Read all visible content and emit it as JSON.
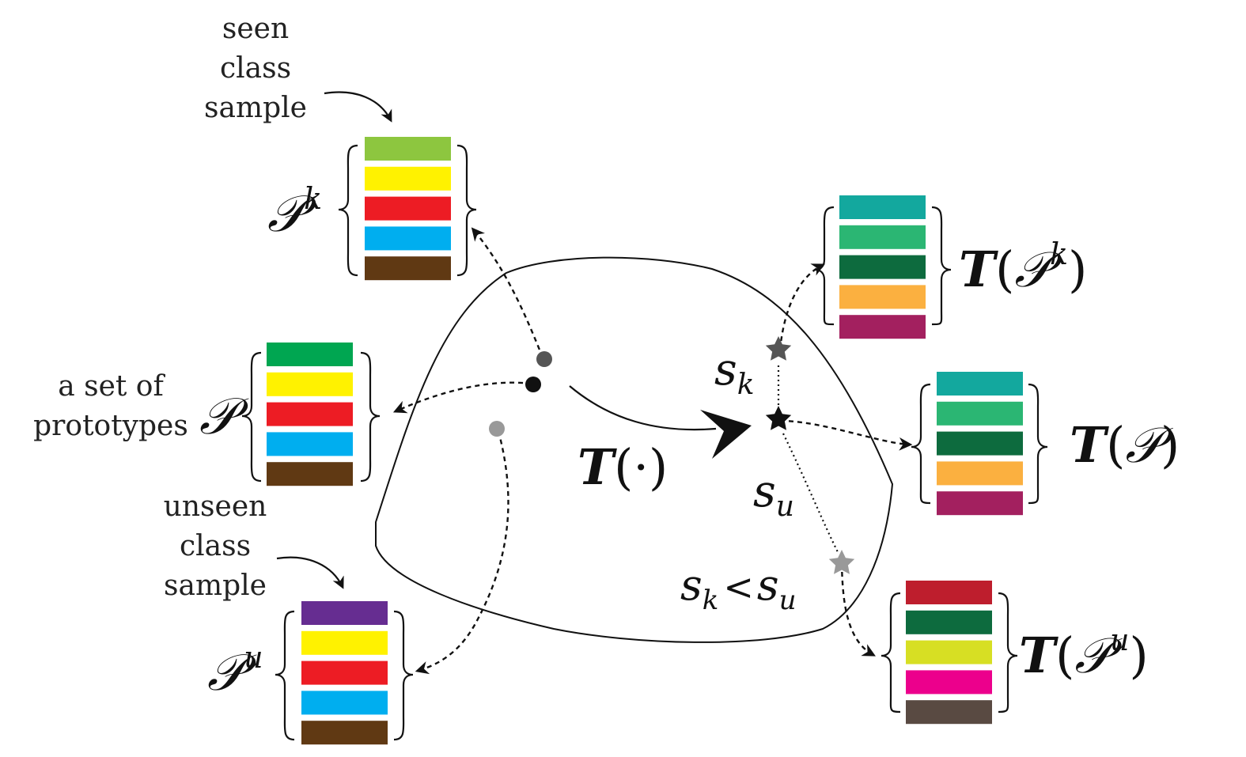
{
  "labels": {
    "seen_sample": [
      "seen",
      "class",
      "sample"
    ],
    "unseen_sample": [
      "unseen",
      "class",
      "sample"
    ],
    "prototypes": [
      "a set of",
      "prototypes"
    ]
  },
  "math": {
    "P": "𝒫",
    "k": "k",
    "u": "u",
    "T": "T",
    "T_dot": "(·)",
    "s": "s",
    "lt": "<",
    "lparen": "(",
    "rparen": ")"
  },
  "colors": {
    "stroke": "#111111",
    "point_dark": "#111111",
    "point_mid": "#555555",
    "point_light": "#999999"
  },
  "stacks": {
    "Pk": [
      "#8dc63f",
      "#fff200",
      "#ed1c24",
      "#00aeef",
      "#603913"
    ],
    "P": [
      "#00a651",
      "#fff200",
      "#ed1c24",
      "#00aeef",
      "#603913"
    ],
    "Pu": [
      "#662d91",
      "#fff200",
      "#ed1c24",
      "#00aeef",
      "#603913"
    ],
    "TPk": [
      "#13a89e",
      "#2bb673",
      "#0d6b3e",
      "#fbb040",
      "#a3205f"
    ],
    "TP": [
      "#13a89e",
      "#2bb673",
      "#0d6b3e",
      "#fbb040",
      "#a3205f"
    ],
    "TPu": [
      "#be1e2d",
      "#0d6b3e",
      "#d7df23",
      "#ec008c",
      "#594a42"
    ]
  }
}
